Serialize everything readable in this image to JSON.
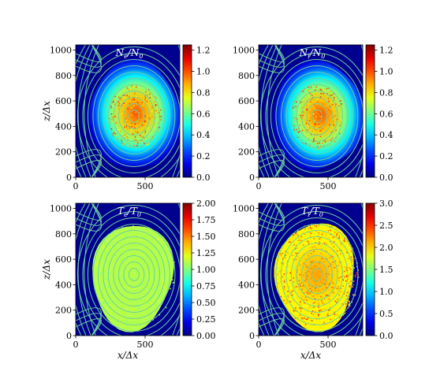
{
  "chart_data": [
    {
      "type": "heatmap",
      "title": "N_e/N_0",
      "title_main": "N",
      "title_sub": "e",
      "title_rest": "/N",
      "title_sub2": "0",
      "xlabel": "",
      "ylabel": "z/Δx",
      "xlim": [
        0,
        750
      ],
      "ylim": [
        0,
        1040
      ],
      "xticks": [
        "0",
        "500"
      ],
      "xtick_values": [
        0,
        500
      ],
      "yticks": [
        "0",
        "200",
        "400",
        "600",
        "800",
        "1000"
      ],
      "ytick_values": [
        0,
        200,
        400,
        600,
        800,
        1000
      ],
      "colorbar": {
        "range": [
          0.0,
          1.25
        ],
        "ticks": [
          "0.0",
          "0.2",
          "0.4",
          "0.6",
          "0.8",
          "1.0",
          "1.2"
        ],
        "tick_values": [
          0.0,
          0.2,
          0.4,
          0.6,
          0.8,
          1.0,
          1.2
        ]
      },
      "field": {
        "shape": "blob",
        "center": [
          420,
          480
        ],
        "peak": 1.0,
        "edge_ratio": 1.0
      },
      "colormap": "jet"
    },
    {
      "type": "heatmap",
      "title": "N_i/N_0",
      "title_main": "N",
      "title_sub": "i",
      "title_rest": "/N",
      "title_sub2": "0",
      "xlabel": "",
      "ylabel": "",
      "xlim": [
        0,
        750
      ],
      "ylim": [
        0,
        1040
      ],
      "xticks": [
        "0",
        "500"
      ],
      "xtick_values": [
        0,
        500
      ],
      "yticks": [
        "0",
        "200",
        "400",
        "600",
        "800",
        "1000"
      ],
      "ytick_values": [
        0,
        200,
        400,
        600,
        800,
        1000
      ],
      "colorbar": {
        "range": [
          0.0,
          1.25
        ],
        "ticks": [
          "0.0",
          "0.2",
          "0.4",
          "0.6",
          "0.8",
          "1.0",
          "1.2"
        ],
        "tick_values": [
          0.0,
          0.2,
          0.4,
          0.6,
          0.8,
          1.0,
          1.2
        ]
      },
      "field": {
        "shape": "blob",
        "center": [
          420,
          480
        ],
        "peak": 1.0,
        "edge_ratio": 1.0
      },
      "colormap": "jet"
    },
    {
      "type": "heatmap",
      "title": "T_e/T_0",
      "title_main": "T",
      "title_sub": "e",
      "title_rest": "/T",
      "title_sub2": "0",
      "xlabel": "x/Δx",
      "ylabel": "z/Δx",
      "xlim": [
        0,
        750
      ],
      "ylim": [
        0,
        1040
      ],
      "xticks": [
        "0",
        "500"
      ],
      "xtick_values": [
        0,
        500
      ],
      "yticks": [
        "0",
        "200",
        "400",
        "600",
        "800",
        "1000"
      ],
      "ytick_values": [
        0,
        200,
        400,
        600,
        800,
        1000
      ],
      "colorbar": {
        "range": [
          0.0,
          2.0
        ],
        "ticks": [
          "0.00",
          "0.25",
          "0.50",
          "0.75",
          "1.00",
          "1.25",
          "1.50",
          "1.75",
          "2.00"
        ],
        "tick_values": [
          0.0,
          0.25,
          0.5,
          0.75,
          1.0,
          1.25,
          1.5,
          1.75,
          2.0
        ]
      },
      "field": {
        "shape": "plateau",
        "center": [
          420,
          480
        ],
        "peak": 1.1,
        "edge_value": 1.1
      },
      "colormap": "jet"
    },
    {
      "type": "heatmap",
      "title": "T_i/T_0",
      "title_main": "T",
      "title_sub": "i",
      "title_rest": "/T",
      "title_sub2": "0",
      "xlabel": "x/Δx",
      "ylabel": "",
      "xlim": [
        0,
        750
      ],
      "ylim": [
        0,
        1040
      ],
      "xticks": [
        "0",
        "500"
      ],
      "xtick_values": [
        0,
        500
      ],
      "yticks": [
        "0",
        "200",
        "400",
        "600",
        "800",
        "1000"
      ],
      "ytick_values": [
        0,
        200,
        400,
        600,
        800,
        1000
      ],
      "colorbar": {
        "range": [
          0.0,
          3.0
        ],
        "ticks": [
          "0.0",
          "0.5",
          "1.0",
          "1.5",
          "2.0",
          "2.5",
          "3.0"
        ],
        "tick_values": [
          0.0,
          0.5,
          1.0,
          1.5,
          2.0,
          2.5,
          3.0
        ]
      },
      "field": {
        "shape": "plateau",
        "center": [
          420,
          480
        ],
        "peak": 2.2,
        "edge_value": 1.9
      },
      "colormap": "jet"
    }
  ],
  "contour_color": "#6fd0a0",
  "background_value_color": "#00008f"
}
